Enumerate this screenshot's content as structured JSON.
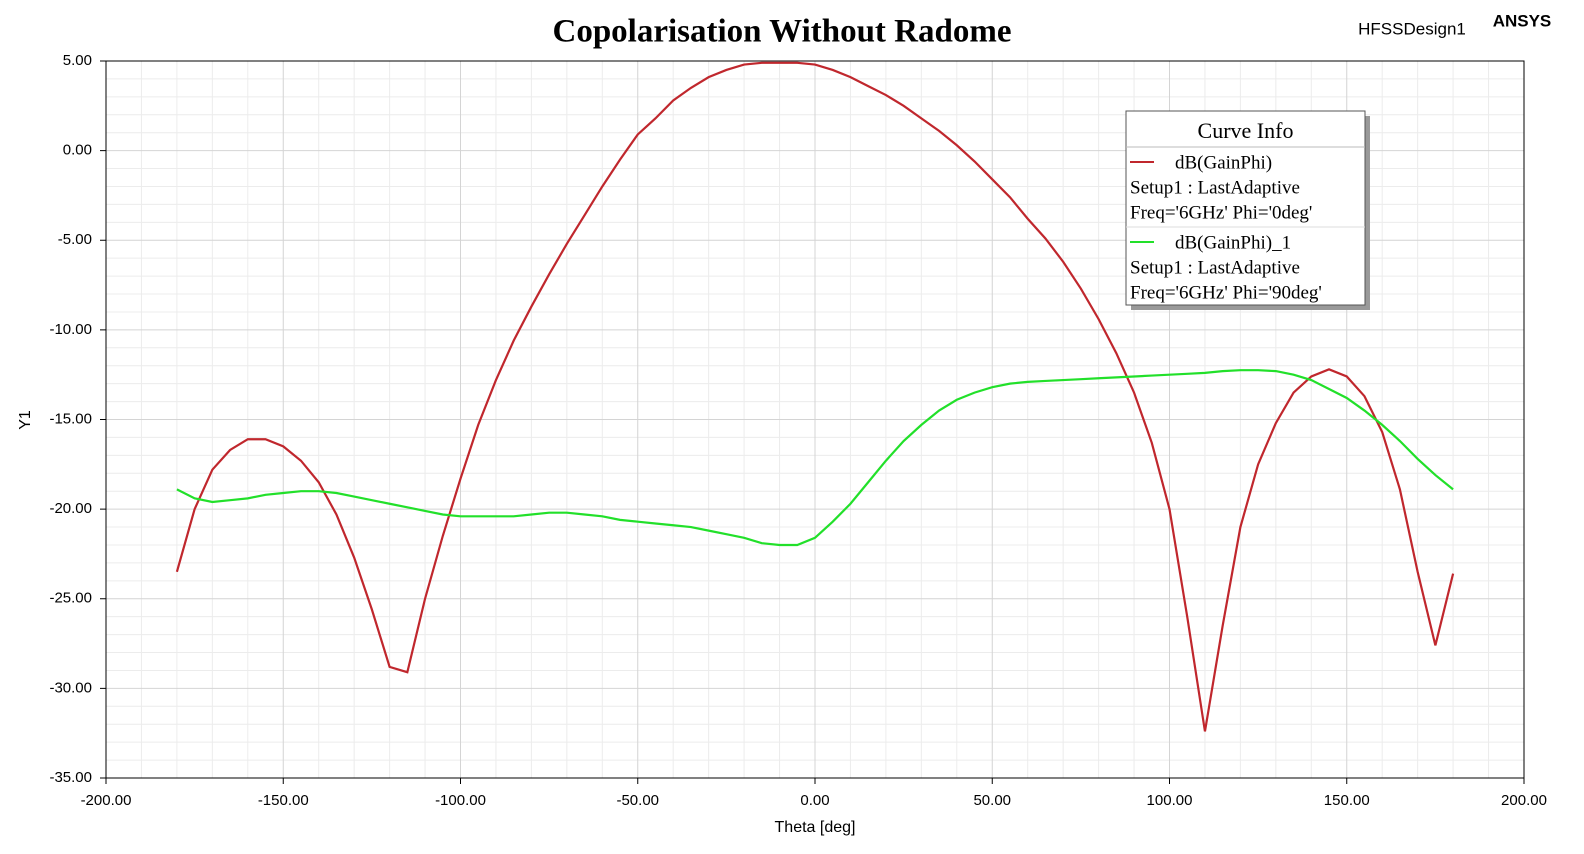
{
  "chart_data": {
    "type": "line",
    "title": "Copolarisation Without Radome",
    "design_name": "HFSSDesign1",
    "brand": "ANSYS",
    "xlabel": "Theta [deg]",
    "ylabel": "Y1",
    "legend_title": "Curve Info",
    "legend": "upper right",
    "grid": true,
    "xlim": [
      -200,
      200
    ],
    "ylim": [
      -35,
      5
    ],
    "xticks": [
      {
        "value": -200,
        "label": "-200.00"
      },
      {
        "value": -150,
        "label": "-150.00"
      },
      {
        "value": -100,
        "label": "-100.00"
      },
      {
        "value": -50,
        "label": "-50.00"
      },
      {
        "value": 0,
        "label": "0.00"
      },
      {
        "value": 50,
        "label": "50.00"
      },
      {
        "value": 100,
        "label": "100.00"
      },
      {
        "value": 150,
        "label": "150.00"
      },
      {
        "value": 200,
        "label": "200.00"
      }
    ],
    "yticks": [
      {
        "value": -35,
        "label": "-35.00"
      },
      {
        "value": -30,
        "label": "-30.00"
      },
      {
        "value": -25,
        "label": "-25.00"
      },
      {
        "value": -20,
        "label": "-20.00"
      },
      {
        "value": -15,
        "label": "-15.00"
      },
      {
        "value": -10,
        "label": "-10.00"
      },
      {
        "value": -5,
        "label": "-5.00"
      },
      {
        "value": 0,
        "label": "0.00"
      },
      {
        "value": 5,
        "label": "5.00"
      }
    ],
    "x": [
      -180,
      -175,
      -170,
      -165,
      -160,
      -155,
      -150,
      -145,
      -140,
      -135,
      -130,
      -125,
      -120,
      -115,
      -110,
      -105,
      -100,
      -95,
      -90,
      -85,
      -80,
      -75,
      -70,
      -65,
      -60,
      -55,
      -50,
      -45,
      -40,
      -35,
      -30,
      -25,
      -20,
      -15,
      -10,
      -5,
      0,
      5,
      10,
      15,
      20,
      25,
      30,
      35,
      40,
      45,
      50,
      55,
      60,
      65,
      70,
      75,
      80,
      85,
      90,
      95,
      100,
      105,
      110,
      115,
      120,
      125,
      130,
      135,
      140,
      145,
      150,
      155,
      160,
      165,
      170,
      175,
      180
    ],
    "series": [
      {
        "name": "dB(GainPhi)",
        "setup": "Setup1 : LastAdaptive",
        "variables": "Freq='6GHz' Phi='0deg'",
        "color": "#c0272d",
        "values": [
          -23.5,
          -20,
          -17.8,
          -16.7,
          -16.1,
          -16.1,
          -16.5,
          -17.3,
          -18.5,
          -20.3,
          -22.7,
          -25.6,
          -28.8,
          -29.1,
          -25,
          -21.5,
          -18.3,
          -15.3,
          -12.8,
          -10.6,
          -8.7,
          -6.9,
          -5.2,
          -3.6,
          -2,
          -0.5,
          0.9,
          1.8,
          2.8,
          3.5,
          4.1,
          4.5,
          4.8,
          4.9,
          4.9,
          4.9,
          4.8,
          4.5,
          4.1,
          3.6,
          3.1,
          2.5,
          1.8,
          1.1,
          0.3,
          -0.6,
          -1.6,
          -2.6,
          -3.8,
          -4.9,
          -6.2,
          -7.7,
          -9.4,
          -11.3,
          -13.5,
          -16.3,
          -20,
          -26,
          -32.4,
          -26.5,
          -21,
          -17.5,
          -15.2,
          -13.5,
          -12.6,
          -12.2,
          -12.6,
          -13.7,
          -15.7,
          -18.9,
          -23.5,
          -27.6,
          -23.6
        ]
      },
      {
        "name": "dB(GainPhi)_1",
        "setup": "Setup1 : LastAdaptive",
        "variables": "Freq='6GHz' Phi='90deg'",
        "color": "#22e02a",
        "values": [
          -18.9,
          -19.4,
          -19.6,
          -19.5,
          -19.4,
          -19.2,
          -19.1,
          -19,
          -19,
          -19.1,
          -19.3,
          -19.5,
          -19.7,
          -19.9,
          -20.1,
          -20.3,
          -20.4,
          -20.4,
          -20.4,
          -20.4,
          -20.3,
          -20.2,
          -20.2,
          -20.3,
          -20.4,
          -20.6,
          -20.7,
          -20.8,
          -20.9,
          -21,
          -21.2,
          -21.4,
          -21.6,
          -21.9,
          -22,
          -22,
          -21.6,
          -20.7,
          -19.7,
          -18.5,
          -17.3,
          -16.2,
          -15.3,
          -14.5,
          -13.9,
          -13.5,
          -13.2,
          -13,
          -12.9,
          -12.85,
          -12.8,
          -12.75,
          -12.7,
          -12.65,
          -12.6,
          -12.55,
          -12.5,
          -12.45,
          -12.4,
          -12.3,
          -12.25,
          -12.25,
          -12.3,
          -12.5,
          -12.8,
          -13.3,
          -13.8,
          -14.5,
          -15.3,
          -16.2,
          -17.2,
          -18.1,
          -18.9
        ]
      }
    ]
  }
}
